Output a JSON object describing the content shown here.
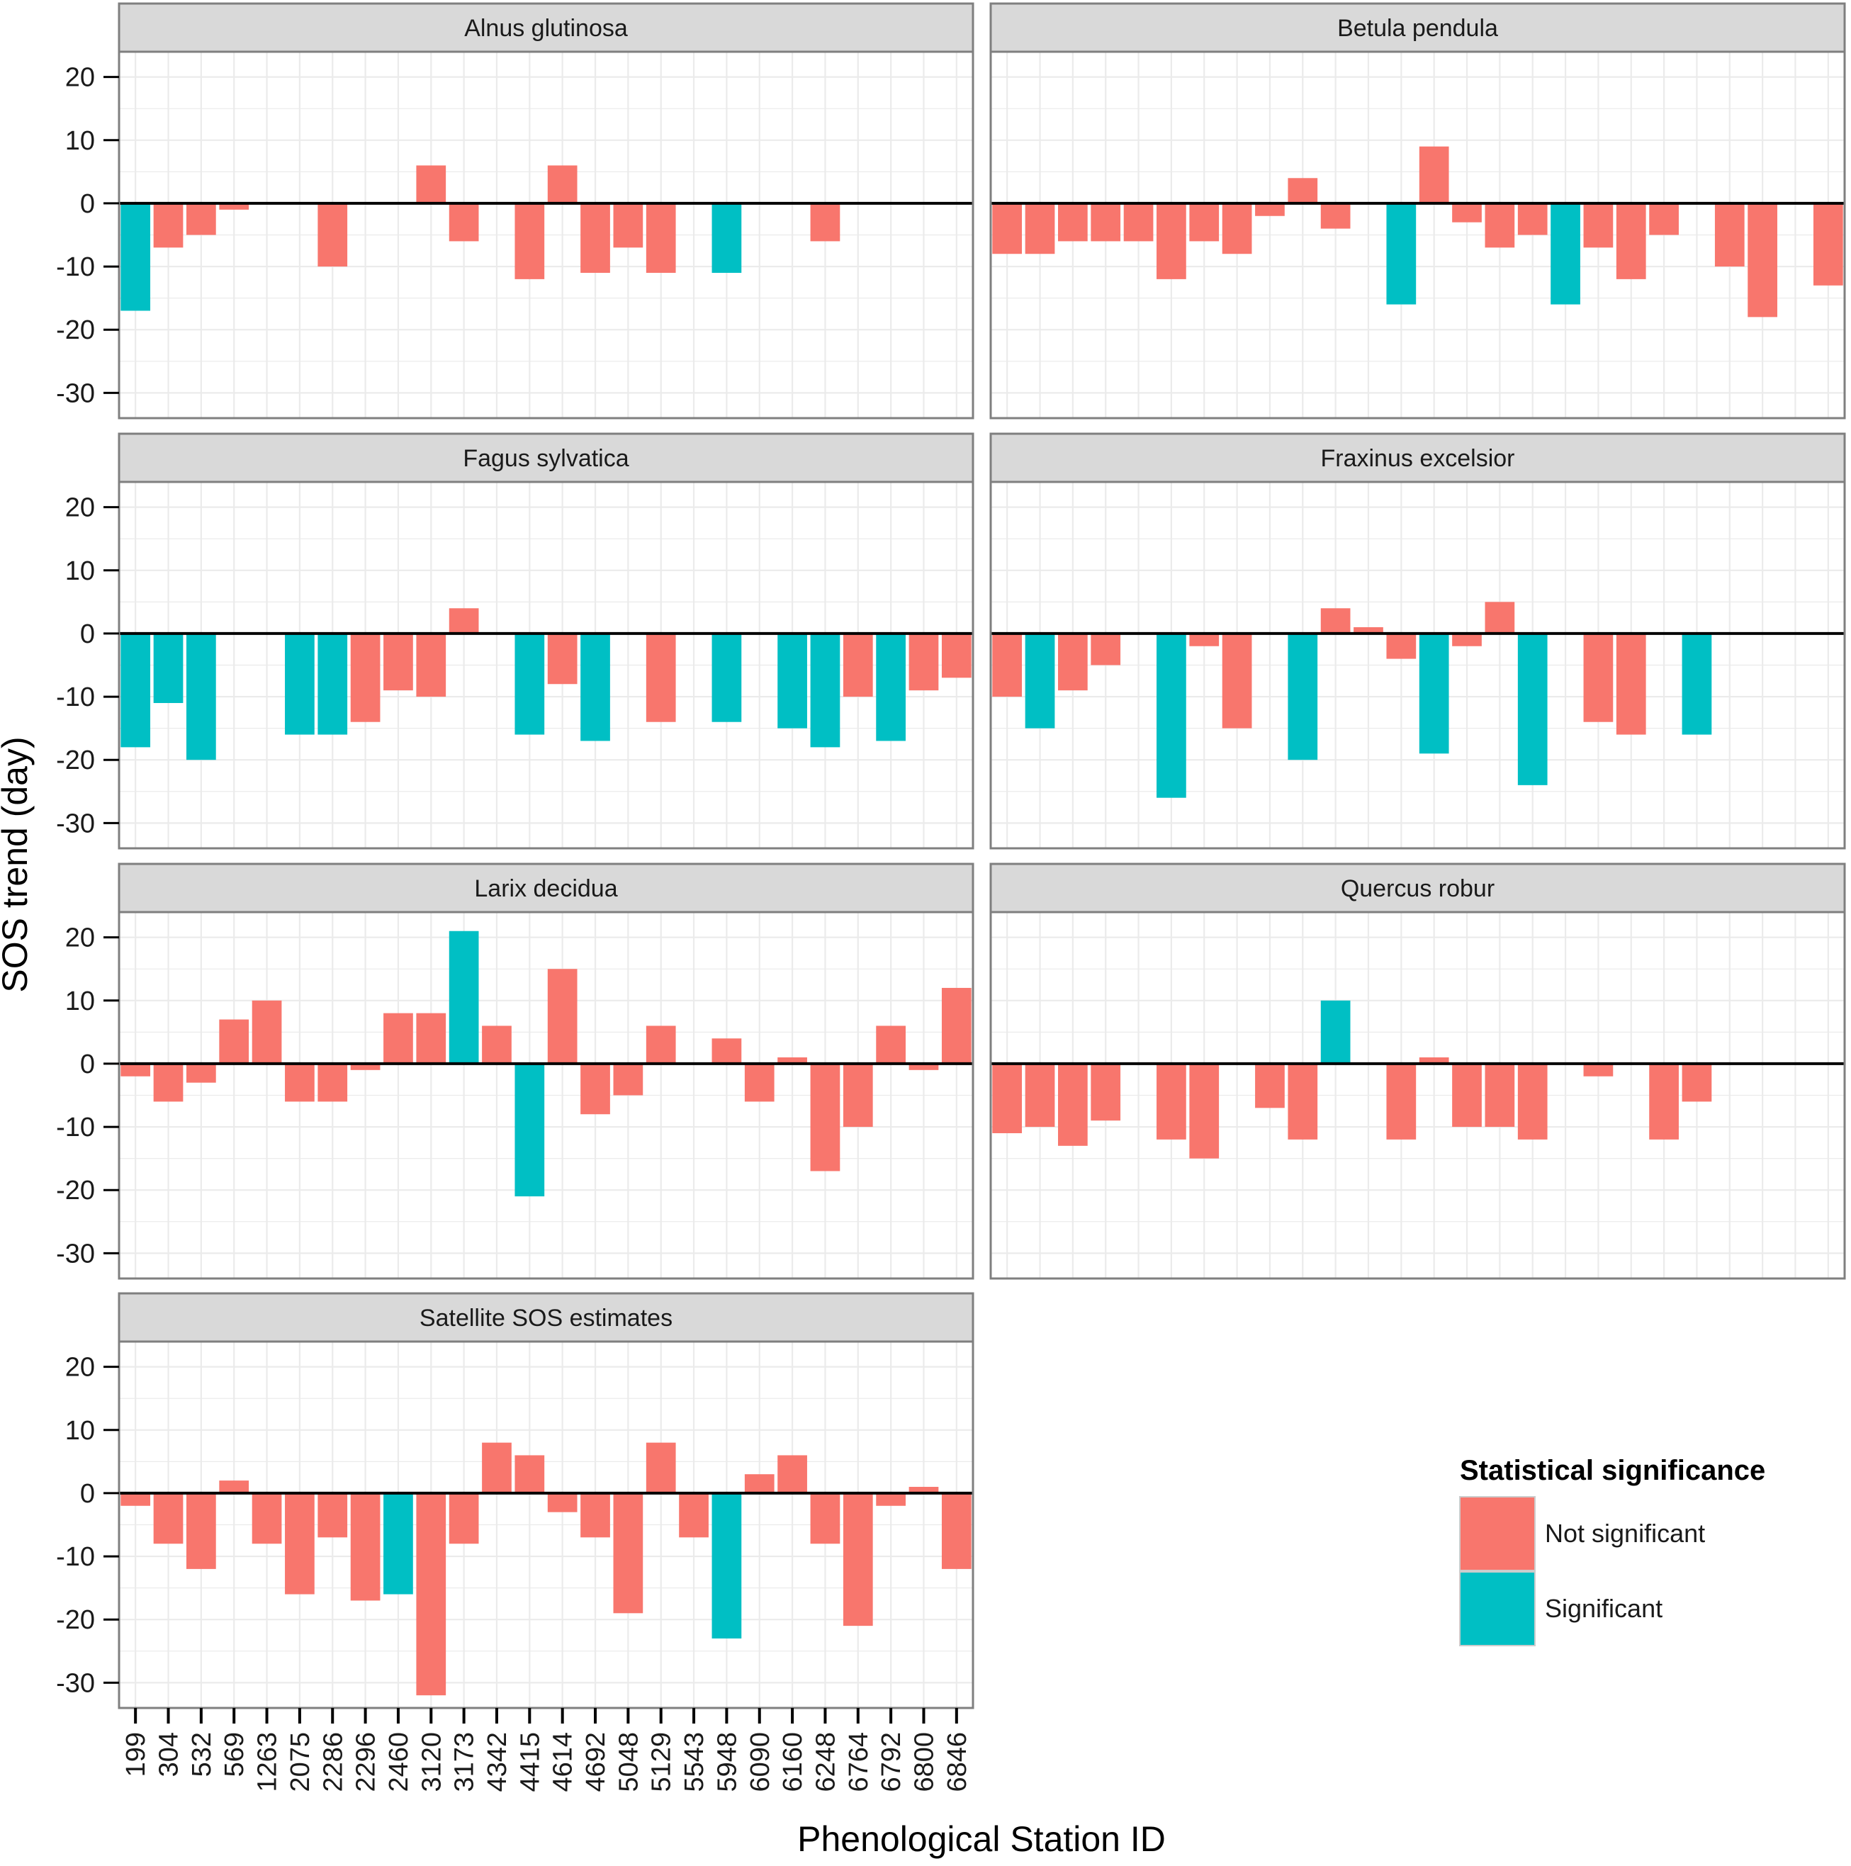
{
  "chart_data": {
    "type": "bar",
    "faceted": true,
    "xlabel": "Phenological Station ID",
    "ylabel": "SOS trend (day)",
    "ylim": [
      -34,
      24
    ],
    "yticks": [
      20,
      10,
      0,
      -10,
      -20,
      -30
    ],
    "categories": [
      "199",
      "304",
      "532",
      "569",
      "1263",
      "2075",
      "2286",
      "2296",
      "2460",
      "3120",
      "3173",
      "4342",
      "4415",
      "4614",
      "4692",
      "5048",
      "5129",
      "5543",
      "5948",
      "6090",
      "6160",
      "6248",
      "6764",
      "6792",
      "6800",
      "6846"
    ],
    "colors": {
      "Not significant": "#F8766D",
      "Significant": "#00BFC4",
      "zero_line": "#000000",
      "panel_border": "#7f7f7f",
      "strip_fill": "#D9D9D9",
      "grid": "#ebebeb"
    },
    "legend": {
      "title": "Statistical significance",
      "position": "bottom-right",
      "entries": [
        "Not significant",
        "Significant"
      ]
    },
    "panels": [
      {
        "title": "Alnus glutinosa",
        "values": [
          -17,
          -7,
          -5,
          -1,
          null,
          null,
          -10,
          null,
          null,
          6,
          -6,
          null,
          -12,
          6,
          -11,
          -7,
          -11,
          null,
          -11,
          null,
          null,
          -6,
          null,
          null,
          null,
          null
        ],
        "significant": [
          1,
          0,
          0,
          0,
          0,
          0,
          0,
          0,
          0,
          0,
          0,
          0,
          0,
          0,
          0,
          0,
          0,
          0,
          1,
          0,
          0,
          0,
          0,
          0,
          0,
          0
        ]
      },
      {
        "title": "Betula pendula",
        "values": [
          -8,
          -8,
          -6,
          -6,
          -6,
          -12,
          -6,
          -8,
          -2,
          4,
          -4,
          null,
          -16,
          9,
          -3,
          -7,
          -5,
          -16,
          -7,
          -12,
          -5,
          null,
          -10,
          -18,
          null,
          -13
        ],
        "significant": [
          0,
          0,
          0,
          0,
          0,
          0,
          0,
          0,
          0,
          0,
          0,
          0,
          1,
          0,
          0,
          0,
          0,
          1,
          0,
          0,
          0,
          0,
          0,
          0,
          0,
          0
        ]
      },
      {
        "title": "Fagus sylvatica",
        "values": [
          -18,
          -11,
          -20,
          null,
          null,
          -16,
          -16,
          -14,
          -9,
          -10,
          4,
          null,
          -16,
          -8,
          -17,
          null,
          -14,
          null,
          -14,
          null,
          -15,
          -18,
          -10,
          -17,
          -9,
          -7
        ],
        "significant": [
          1,
          1,
          1,
          0,
          0,
          1,
          1,
          0,
          0,
          0,
          0,
          0,
          1,
          0,
          1,
          0,
          0,
          0,
          1,
          0,
          1,
          1,
          0,
          1,
          0,
          0
        ]
      },
      {
        "title": "Fraxinus excelsior",
        "values": [
          -10,
          -15,
          -9,
          -5,
          null,
          -26,
          -2,
          -15,
          null,
          -20,
          4,
          1,
          -4,
          -19,
          -2,
          5,
          -24,
          null,
          -14,
          -16,
          null,
          -16,
          null,
          null,
          null,
          null
        ],
        "significant": [
          0,
          1,
          0,
          0,
          0,
          1,
          0,
          0,
          0,
          1,
          0,
          0,
          0,
          1,
          0,
          0,
          1,
          0,
          0,
          0,
          0,
          1,
          0,
          0,
          0,
          0
        ]
      },
      {
        "title": "Larix decidua",
        "values": [
          -2,
          -6,
          -3,
          7,
          10,
          -6,
          -6,
          -1,
          8,
          8,
          21,
          6,
          -21,
          15,
          -8,
          -5,
          6,
          null,
          4,
          -6,
          1,
          -17,
          -10,
          6,
          -1,
          12
        ],
        "significant": [
          0,
          0,
          0,
          0,
          0,
          0,
          0,
          0,
          0,
          0,
          1,
          0,
          1,
          0,
          0,
          0,
          0,
          0,
          0,
          0,
          0,
          0,
          0,
          0,
          0,
          0
        ]
      },
      {
        "title": "Quercus robur",
        "values": [
          -11,
          -10,
          -13,
          -9,
          null,
          -12,
          -15,
          null,
          -7,
          -12,
          10,
          null,
          -12,
          1,
          -10,
          -10,
          -12,
          null,
          -2,
          null,
          -12,
          -6,
          null,
          null,
          null,
          null
        ],
        "significant": [
          0,
          0,
          0,
          0,
          0,
          0,
          0,
          0,
          0,
          0,
          1,
          0,
          0,
          0,
          0,
          0,
          0,
          0,
          0,
          0,
          0,
          0,
          0,
          0,
          0,
          0
        ]
      },
      {
        "title": "Satellite SOS estimates",
        "values": [
          -2,
          -8,
          -12,
          2,
          -8,
          -16,
          -7,
          -17,
          -16,
          -32,
          -8,
          8,
          6,
          -3,
          -7,
          -19,
          8,
          -7,
          -23,
          3,
          6,
          -8,
          -21,
          -2,
          1,
          -12
        ],
        "significant": [
          0,
          0,
          0,
          0,
          0,
          0,
          0,
          0,
          1,
          0,
          0,
          0,
          0,
          0,
          0,
          0,
          0,
          0,
          1,
          0,
          0,
          0,
          0,
          0,
          0,
          0
        ]
      }
    ]
  }
}
